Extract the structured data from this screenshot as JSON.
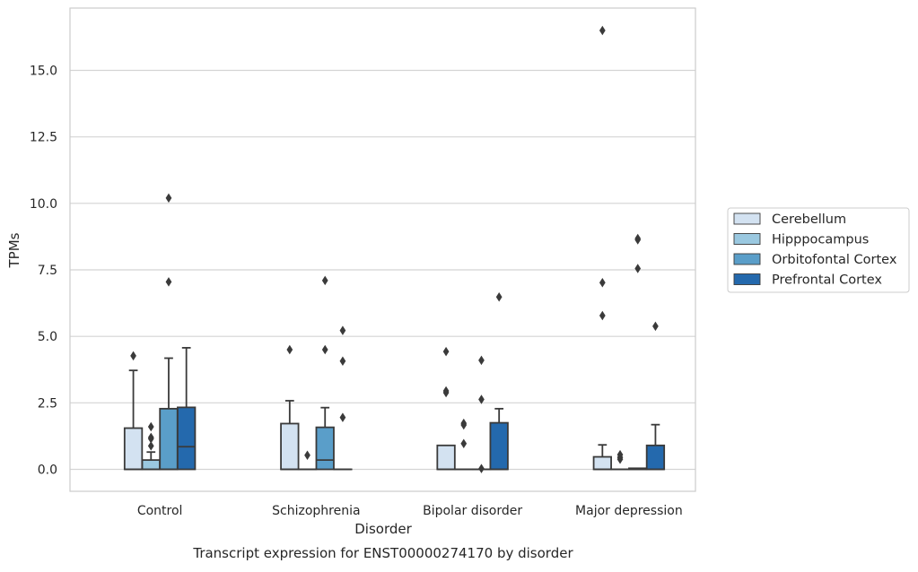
{
  "chart_data": {
    "type": "box",
    "title": "",
    "caption": "Transcript expression for ENST00000274170 by disorder",
    "xlabel": "Disorder",
    "ylabel": "TPMs",
    "ylim": [
      -0.8,
      17.8
    ],
    "yticks": [
      "0.0",
      "2.5",
      "5.0",
      "7.5",
      "10.0",
      "12.5",
      "15.0"
    ],
    "ytick_values": [
      0,
      2.5,
      5,
      7.5,
      10,
      12.5,
      15
    ],
    "grid": "horizontal",
    "legend_position": "right",
    "categories": [
      "Control",
      "Schizophrenia",
      "Bipolar disorder",
      "Major depression"
    ],
    "series": [
      {
        "name": "Cerebellum",
        "color": "#d3e2f1",
        "boxes": [
          {
            "q1": 0,
            "median": 0,
            "q3": 1.55,
            "whisker_low": 0,
            "whisker_high": 3.72,
            "outliers": [
              4.27
            ]
          },
          {
            "q1": 0,
            "median": 0,
            "q3": 1.72,
            "whisker_low": 0,
            "whisker_high": 2.58,
            "outliers": [
              4.5
            ]
          },
          {
            "q1": 0,
            "median": 0,
            "q3": 0.9,
            "whisker_low": 0,
            "whisker_high": 0.9,
            "outliers": [
              4.43,
              2.95,
              2.88
            ]
          },
          {
            "q1": 0,
            "median": 0,
            "q3": 0.47,
            "whisker_low": 0,
            "whisker_high": 0.92,
            "outliers": [
              16.5,
              7.02,
              5.78
            ]
          }
        ]
      },
      {
        "name": "Hipppocampus",
        "color": "#9ac8e0",
        "boxes": [
          {
            "q1": 0,
            "median": 0,
            "q3": 0.35,
            "whisker_low": 0,
            "whisker_high": 0.65,
            "outliers": [
              1.6,
              1.2,
              1.15,
              0.88
            ]
          },
          {
            "q1": 0,
            "median": 0,
            "q3": 0,
            "whisker_low": 0,
            "whisker_high": 0,
            "outliers": [
              0.53
            ]
          },
          {
            "q1": 0,
            "median": 0,
            "q3": 0,
            "whisker_low": 0,
            "whisker_high": 0,
            "outliers": [
              1.73,
              1.67,
              0.97
            ]
          },
          {
            "q1": 0,
            "median": 0,
            "q3": 0,
            "whisker_low": 0,
            "whisker_high": 0,
            "outliers": [
              0.55,
              0.45,
              0.38
            ]
          }
        ]
      },
      {
        "name": "Orbitofontal Cortex",
        "color": "#5a9ec9",
        "boxes": [
          {
            "q1": 0,
            "median": 0,
            "q3": 2.28,
            "whisker_low": 0,
            "whisker_high": 4.18,
            "outliers": [
              10.2,
              7.05
            ]
          },
          {
            "q1": 0,
            "median": 0.35,
            "q3": 1.58,
            "whisker_low": 0,
            "whisker_high": 2.32,
            "outliers": [
              7.1,
              4.5
            ]
          },
          {
            "q1": 0,
            "median": 0,
            "q3": 0,
            "whisker_low": 0,
            "whisker_high": 0,
            "outliers": [
              4.1,
              2.63,
              0.03
            ]
          },
          {
            "q1": 0,
            "median": 0,
            "q3": 0.04,
            "whisker_low": 0,
            "whisker_high": 0.04,
            "outliers": [
              8.68,
              8.63,
              7.55
            ]
          }
        ]
      },
      {
        "name": "Prefrontal Cortex",
        "color": "#2469ad",
        "boxes": [
          {
            "q1": 0,
            "median": 0.85,
            "q3": 2.33,
            "whisker_low": 0,
            "whisker_high": 4.57,
            "outliers": []
          },
          {
            "q1": 0,
            "median": 0,
            "q3": 0,
            "whisker_low": 0,
            "whisker_high": 0,
            "outliers": [
              5.22,
              4.07,
              1.95
            ]
          },
          {
            "q1": 0,
            "median": 0,
            "q3": 1.75,
            "whisker_low": 0,
            "whisker_high": 2.28,
            "outliers": [
              6.48
            ]
          },
          {
            "q1": 0,
            "median": 0,
            "q3": 0.9,
            "whisker_low": 0,
            "whisker_high": 1.68,
            "outliers": [
              5.38
            ]
          }
        ]
      }
    ]
  }
}
